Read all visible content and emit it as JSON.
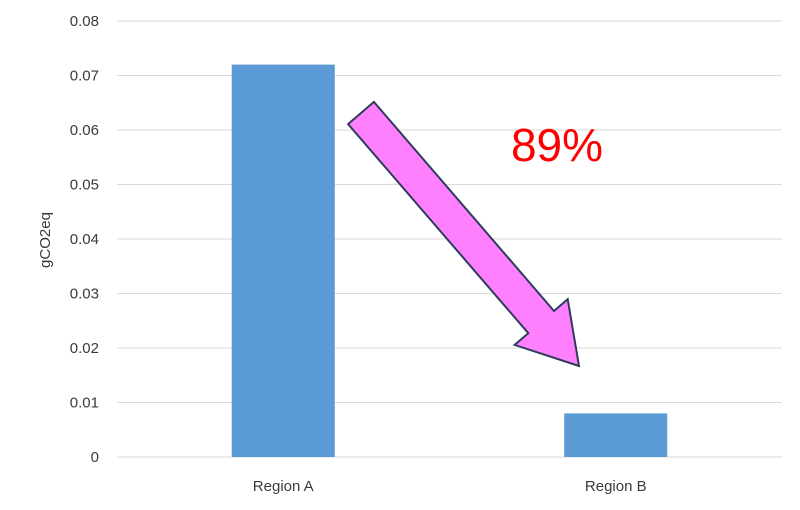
{
  "chart_data": {
    "type": "bar",
    "title": "",
    "xlabel": "",
    "ylabel": "gCO2eq",
    "categories": [
      "Region A",
      "Region B"
    ],
    "values": [
      0.072,
      0.008
    ],
    "ylim": [
      0,
      0.08
    ],
    "yticks": [
      0,
      0.01,
      0.02,
      0.03,
      0.04,
      0.05,
      0.06,
      0.07,
      0.08
    ],
    "ytick_labels": [
      "0",
      "0.01",
      "0.02",
      "0.03",
      "0.04",
      "0.05",
      "0.06",
      "0.07",
      "0.08"
    ],
    "grid": true,
    "legend": "none",
    "bar_color": "#5b9bd5",
    "annotation": {
      "text": "89%",
      "color": "#ff0000",
      "arrow": {
        "fill": "#ff80ff",
        "stroke": "#2f3b5c",
        "from_category": "Region A",
        "to_category": "Region B",
        "direction": "down-right"
      }
    }
  }
}
